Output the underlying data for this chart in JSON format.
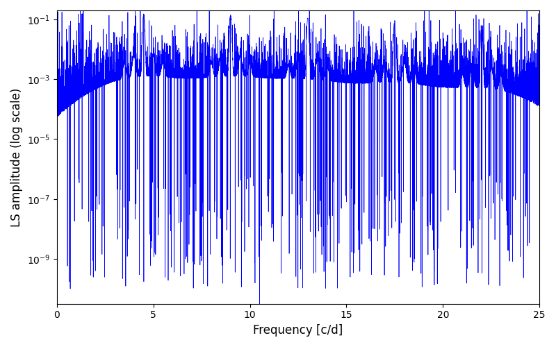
{
  "title": "",
  "xlabel": "Frequency [c/d]",
  "ylabel": "LS amplitude (log scale)",
  "line_color": "blue",
  "xlim": [
    0,
    25
  ],
  "ylim_log": [
    -10.5,
    -0.7
  ],
  "figsize": [
    8.0,
    5.0
  ],
  "dpi": 100,
  "peak_frequencies": [
    4.5,
    9.0,
    13.0,
    17.5,
    22.0
  ],
  "peak_amplitudes": [
    0.15,
    0.14,
    0.11,
    0.09,
    0.06
  ],
  "base_noise_mean_log": -4.0,
  "base_noise_std_log": 1.0,
  "seed": 12345,
  "n_points": 8000,
  "freq_start": 0.0,
  "freq_end": 25.0
}
